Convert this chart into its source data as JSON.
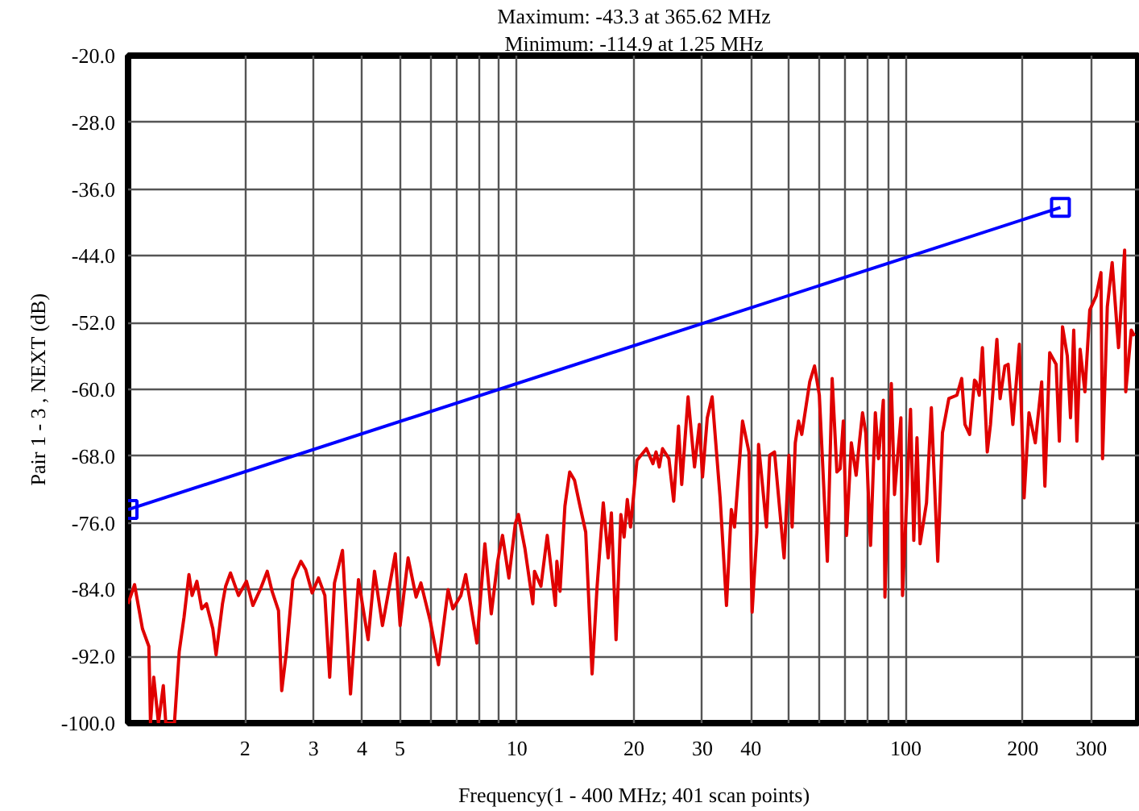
{
  "chart_data": {
    "type": "line",
    "title": "Maximum: -43.3 at 365.62 MHz",
    "subtitle": "Minimum: -114.9 at 1.25 MHz",
    "xlabel": "Frequency(1 - 400 MHz; 401 scan points)",
    "ylabel": "Pair 1 - 3 , NEXT (dB)",
    "log": "x",
    "grid": true,
    "xlim": [
      1,
      400
    ],
    "ylim": [
      -100,
      -20
    ],
    "xticks": [
      {
        "value": 2,
        "label": "2"
      },
      {
        "value": 3,
        "label": "3"
      },
      {
        "value": 4,
        "label": "4"
      },
      {
        "value": 5,
        "label": "5"
      },
      {
        "value": 6,
        "label": null
      },
      {
        "value": 7,
        "label": null
      },
      {
        "value": 8,
        "label": null
      },
      {
        "value": 9,
        "label": null
      },
      {
        "value": 10,
        "label": "10"
      },
      {
        "value": 20,
        "label": "20"
      },
      {
        "value": 30,
        "label": "30"
      },
      {
        "value": 40,
        "label": "40"
      },
      {
        "value": 50,
        "label": null
      },
      {
        "value": 60,
        "label": null
      },
      {
        "value": 70,
        "label": null
      },
      {
        "value": 80,
        "label": null
      },
      {
        "value": 90,
        "label": null
      },
      {
        "value": 100,
        "label": "100"
      },
      {
        "value": 200,
        "label": "200"
      },
      {
        "value": 300,
        "label": "300"
      }
    ],
    "yticks": [
      {
        "value": -100,
        "label": "-100.0"
      },
      {
        "value": -92,
        "label": "-92.0"
      },
      {
        "value": -84,
        "label": "-84.0"
      },
      {
        "value": -76,
        "label": "-76.0"
      },
      {
        "value": -68,
        "label": "-68.0"
      },
      {
        "value": -60,
        "label": "-60.0"
      },
      {
        "value": -52,
        "label": "-52.0"
      },
      {
        "value": -44,
        "label": "-44.0"
      },
      {
        "value": -36,
        "label": "-36.0"
      },
      {
        "value": -28,
        "label": "-28.0"
      },
      {
        "value": -20,
        "label": "-20.0"
      }
    ],
    "series": [
      {
        "color": "#0000ff",
        "marker": "square",
        "x": [
          1,
          250
        ],
        "values": [
          -74.4,
          -38.2
        ]
      },
      {
        "color": "#e00000",
        "marker": "none",
        "x": [
          1,
          1.039,
          1.089,
          1.131,
          1.142,
          1.164,
          1.197,
          1.232,
          1.25,
          1.316,
          1.354,
          1.393,
          1.434,
          1.461,
          1.503,
          1.547,
          1.591,
          1.652,
          1.684,
          1.749,
          1.782,
          1.834,
          1.923,
          2.016,
          2.094,
          2.196,
          2.28,
          2.346,
          2.437,
          2.484,
          2.555,
          2.654,
          2.783,
          2.863,
          2.974,
          3.088,
          3.207,
          3.3,
          3.395,
          3.56,
          3.733,
          3.914,
          4.143,
          4.303,
          4.511,
          4.867,
          5.008,
          5.251,
          5.505,
          5.664,
          5.996,
          6.286,
          6.653,
          6.845,
          7.178,
          7.385,
          7.89,
          8.273,
          8.593,
          8.925,
          9.183,
          9.537,
          9.906,
          10.09,
          10.49,
          10.99,
          11.1,
          11.53,
          11.97,
          12.56,
          12.67,
          12.91,
          13.29,
          13.67,
          14.07,
          14.47,
          15.03,
          15.61,
          16.07,
          16.68,
          17.17,
          17.5,
          17.99,
          18.51,
          18.87,
          19.23,
          19.6,
          20.36,
          21.54,
          22.38,
          22.8,
          23.24,
          23.69,
          24.6,
          25.31,
          26.04,
          26.54,
          27.56,
          28.63,
          29.46,
          30.02,
          30.88,
          31.78,
          33.32,
          34.6,
          35.6,
          36.29,
          38.05,
          39.52,
          40.27,
          41.43,
          41.83,
          43.85,
          44.69,
          45.98,
          48.67,
          50.08,
          51.04,
          52.0,
          53.01,
          54.03,
          56.64,
          58.28,
          59.96,
          62.87,
          64.69,
          66.53,
          67.81,
          69.11,
          70.44,
          72.47,
          74.56,
          75.99,
          77.44,
          78.93,
          81.21,
          83.54,
          85.11,
          87.59,
          88.42,
          91.83,
          93.58,
          97.2,
          98.13,
          102.9,
          104.9,
          106.9,
          108.9,
          113.1,
          116.4,
          120.9,
          124.3,
          129.1,
          135.4,
          139.3,
          142.0,
          146.0,
          150.3,
          151.7,
          154.6,
          157.5,
          162.1,
          165.2,
          171.6,
          174.9,
          179.9,
          183.4,
          188.6,
          196.0,
          201.6,
          207.5,
          215.4,
          223.7,
          228.0,
          234.6,
          243.7,
          248.4,
          253.1,
          260.4,
          265.4,
          270.5,
          275.6,
          280.9,
          289.0,
          297.4,
          308.9,
          317.8,
          320.8,
          330.0,
          339.6,
          352.7,
          365.62,
          368.0,
          380.3,
          387.6
        ],
        "values": [
          -85.7,
          -83.4,
          -88.7,
          -90.8,
          -100,
          -94.5,
          -100,
          -95.5,
          -100,
          -100,
          -91.4,
          -87.3,
          -82.2,
          -84.7,
          -83.0,
          -86.3,
          -85.7,
          -88.7,
          -91.8,
          -85.7,
          -83.6,
          -82.0,
          -84.7,
          -83.0,
          -85.9,
          -83.8,
          -81.8,
          -84.2,
          -86.5,
          -96.1,
          -91.4,
          -82.8,
          -80.6,
          -81.6,
          -84.4,
          -82.6,
          -84.7,
          -94.5,
          -83.2,
          -79.3,
          -96.5,
          -82.8,
          -90.0,
          -81.8,
          -88.3,
          -79.7,
          -88.3,
          -80.2,
          -84.9,
          -83.2,
          -87.9,
          -93.0,
          -84.0,
          -86.3,
          -84.7,
          -82.2,
          -90.4,
          -78.5,
          -86.9,
          -80.6,
          -77.5,
          -82.6,
          -76.1,
          -75.0,
          -79.1,
          -85.7,
          -81.8,
          -83.6,
          -77.5,
          -85.9,
          -80.6,
          -84.2,
          -74.0,
          -69.9,
          -70.9,
          -73.6,
          -77.1,
          -94.1,
          -83.8,
          -73.6,
          -80.2,
          -74.8,
          -90.0,
          -75.0,
          -77.7,
          -73.2,
          -76.5,
          -68.5,
          -67.1,
          -68.9,
          -67.5,
          -69.3,
          -67.1,
          -68.3,
          -73.4,
          -64.4,
          -71.4,
          -60.9,
          -69.3,
          -64.2,
          -70.5,
          -63.4,
          -60.9,
          -73.0,
          -85.9,
          -74.4,
          -76.5,
          -63.8,
          -67.5,
          -86.7,
          -77.1,
          -66.6,
          -76.5,
          -67.9,
          -67.5,
          -80.2,
          -67.9,
          -76.5,
          -66.4,
          -63.8,
          -65.4,
          -59.1,
          -57.2,
          -60.7,
          -80.6,
          -58.7,
          -69.9,
          -69.5,
          -63.8,
          -77.5,
          -66.4,
          -70.3,
          -66.4,
          -62.8,
          -65.2,
          -78.7,
          -62.8,
          -68.3,
          -61.3,
          -84.9,
          -59.3,
          -72.6,
          -63.4,
          -84.7,
          -62.4,
          -78.1,
          -65.8,
          -78.5,
          -73.6,
          -62.2,
          -80.6,
          -65.2,
          -61.1,
          -60.7,
          -58.7,
          -64.2,
          -65.4,
          -58.9,
          -59.1,
          -60.7,
          -55.0,
          -67.5,
          -64.2,
          -54.0,
          -61.1,
          -57.2,
          -57.0,
          -64.2,
          -54.6,
          -73.0,
          -62.8,
          -66.4,
          -59.1,
          -71.6,
          -55.6,
          -57.0,
          -66.2,
          -52.5,
          -56.0,
          -63.4,
          -52.9,
          -66.2,
          -55.2,
          -60.3,
          -50.5,
          -48.8,
          -46.0,
          -68.3,
          -50.1,
          -44.8,
          -55.0,
          -43.3,
          -60.3,
          -52.9,
          -53.6
        ]
      }
    ]
  }
}
